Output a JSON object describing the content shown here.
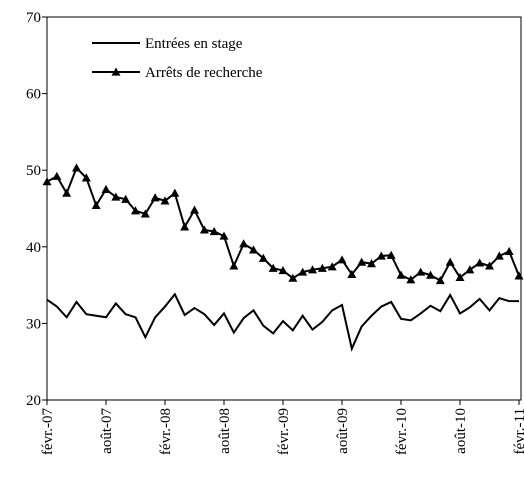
{
  "chart_data": {
    "type": "line",
    "categories": [
      "févr.-07",
      null,
      null,
      null,
      null,
      null,
      "août-07",
      null,
      null,
      null,
      null,
      null,
      "févr.-08",
      null,
      null,
      null,
      null,
      null,
      "août-08",
      null,
      null,
      null,
      null,
      null,
      "févr.-09",
      null,
      null,
      null,
      null,
      null,
      "août-09",
      null,
      null,
      null,
      null,
      null,
      "févr.-10",
      null,
      null,
      null,
      null,
      null,
      "août-10",
      null,
      null,
      null,
      null,
      null,
      "févr.-11"
    ],
    "series": [
      {
        "name": "Entrées en stage",
        "color": "#000000",
        "values": [
          33.1,
          32.2,
          30.8,
          32.8,
          31.2,
          31,
          30.8,
          32.6,
          31.2,
          30.8,
          28.2,
          30.8,
          32.2,
          33.8,
          31.1,
          32,
          31.2,
          29.8,
          31.3,
          28.8,
          30.7,
          31.7,
          29.7,
          28.7,
          30.3,
          29.1,
          31,
          29.2,
          30.2,
          31.7,
          32.4,
          26.7,
          29.6,
          31,
          32.2,
          32.8,
          30.6,
          30.4,
          31.3,
          32.3,
          31.6,
          33.7,
          31.3,
          32.1,
          33.2,
          31.7,
          33.3,
          32.9,
          32.9
        ]
      },
      {
        "name": "Arrêts de recherche",
        "color": "#000000",
        "marker": "triangle",
        "values": [
          48.5,
          49.2,
          47,
          50.3,
          49,
          45.4,
          47.5,
          46.5,
          46.2,
          44.7,
          44.3,
          46.4,
          46,
          47,
          42.6,
          44.8,
          42.2,
          42,
          41.4,
          37.5,
          40.4,
          39.6,
          38.5,
          37.2,
          36.9,
          35.9,
          36.7,
          37,
          37.2,
          37.4,
          38.3,
          36.4,
          38,
          37.8,
          38.8,
          38.9,
          36.3,
          35.7,
          36.7,
          36.3,
          35.6,
          38,
          36,
          37,
          37.9,
          37.5,
          38.8,
          39.4,
          36.2
        ]
      }
    ],
    "ylim": [
      20,
      70
    ],
    "yticks": [
      20,
      30,
      40,
      50,
      60,
      70
    ],
    "grid": false,
    "legend": "top-left"
  }
}
